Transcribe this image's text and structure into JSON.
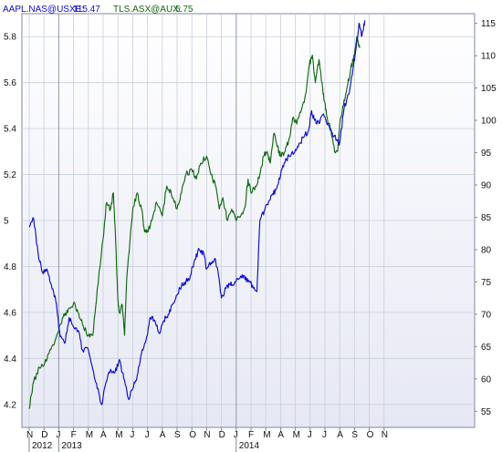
{
  "legend": [
    {
      "name": "AAPL.NAS@USXE:",
      "last": "115.47",
      "color": "#0b0bd8"
    },
    {
      "name": "TLS.ASX@AUX:",
      "last": "5.75",
      "color": "#0e6a0e"
    }
  ],
  "chart_data": {
    "type": "line",
    "grid": true,
    "legend_position": "top-left",
    "left_axis": {
      "series": "TLS.ASX@AUX",
      "ylim": [
        4.1,
        5.9
      ],
      "ticks": [
        "4.2",
        "4.4",
        "4.6",
        "4.8",
        "5",
        "5.2",
        "5.4",
        "5.6",
        "5.8"
      ]
    },
    "right_axis": {
      "series": "AAPL.NAS@USXE",
      "ylim": [
        52.5,
        116.5
      ],
      "ticks": [
        "55",
        "60",
        "65",
        "70",
        "75",
        "80",
        "85",
        "90",
        "95",
        "100",
        "105",
        "110",
        "115"
      ]
    },
    "x_axis": {
      "months": [
        "N",
        "D",
        "J",
        "F",
        "M",
        "A",
        "M",
        "J",
        "J",
        "A",
        "S",
        "O",
        "N",
        "D",
        "J",
        "F",
        "M",
        "A",
        "M",
        "J",
        "J",
        "A",
        "S",
        "O",
        "N"
      ],
      "years": [
        {
          "label": "2012",
          "month_index": 0
        },
        {
          "label": "2013",
          "month_index": 2
        },
        {
          "label": "2014",
          "month_index": 14
        }
      ]
    },
    "series": [
      {
        "name": "TLS.ASX@AUX",
        "axis": "left",
        "color": "#0e6a0e",
        "points": [
          [
            0,
            4.18
          ],
          [
            0.3,
            4.3
          ],
          [
            0.7,
            4.36
          ],
          [
            1.0,
            4.37
          ],
          [
            1.3,
            4.42
          ],
          [
            1.6,
            4.46
          ],
          [
            2.0,
            4.52
          ],
          [
            2.3,
            4.58
          ],
          [
            2.6,
            4.6
          ],
          [
            3.0,
            4.64
          ],
          [
            3.3,
            4.6
          ],
          [
            3.6,
            4.55
          ],
          [
            4.0,
            4.5
          ],
          [
            4.3,
            4.5
          ],
          [
            4.6,
            4.7
          ],
          [
            5.0,
            4.92
          ],
          [
            5.2,
            5.07
          ],
          [
            5.5,
            5.05
          ],
          [
            5.7,
            5.12
          ],
          [
            5.85,
            4.9
          ],
          [
            6.0,
            4.65
          ],
          [
            6.1,
            4.6
          ],
          [
            6.3,
            4.63
          ],
          [
            6.45,
            4.5
          ],
          [
            6.6,
            4.75
          ],
          [
            6.8,
            4.9
          ],
          [
            7.0,
            5.05
          ],
          [
            7.3,
            5.12
          ],
          [
            7.6,
            5.05
          ],
          [
            7.8,
            4.95
          ],
          [
            8.0,
            4.95
          ],
          [
            8.3,
            5.0
          ],
          [
            8.6,
            5.08
          ],
          [
            9.0,
            5.02
          ],
          [
            9.3,
            5.15
          ],
          [
            9.6,
            5.12
          ],
          [
            10.0,
            5.05
          ],
          [
            10.3,
            5.12
          ],
          [
            10.6,
            5.2
          ],
          [
            11.0,
            5.22
          ],
          [
            11.3,
            5.18
          ],
          [
            11.6,
            5.25
          ],
          [
            12.0,
            5.28
          ],
          [
            12.3,
            5.2
          ],
          [
            12.6,
            5.15
          ],
          [
            12.85,
            5.05
          ],
          [
            13.1,
            5.1
          ],
          [
            13.4,
            5.0
          ],
          [
            13.7,
            5.05
          ],
          [
            14.0,
            5.0
          ],
          [
            14.3,
            5.02
          ],
          [
            14.6,
            5.06
          ],
          [
            14.8,
            5.18
          ],
          [
            15.0,
            5.12
          ],
          [
            15.3,
            5.15
          ],
          [
            15.6,
            5.2
          ],
          [
            15.85,
            5.28
          ],
          [
            16.1,
            5.3
          ],
          [
            16.3,
            5.25
          ],
          [
            16.55,
            5.38
          ],
          [
            16.8,
            5.32
          ],
          [
            17.0,
            5.28
          ],
          [
            17.3,
            5.3
          ],
          [
            17.6,
            5.36
          ],
          [
            17.85,
            5.45
          ],
          [
            18.1,
            5.42
          ],
          [
            18.4,
            5.48
          ],
          [
            18.7,
            5.55
          ],
          [
            18.95,
            5.68
          ],
          [
            19.15,
            5.72
          ],
          [
            19.35,
            5.6
          ],
          [
            19.6,
            5.7
          ],
          [
            19.8,
            5.6
          ],
          [
            19.95,
            5.52
          ],
          [
            20.15,
            5.45
          ],
          [
            20.4,
            5.4
          ],
          [
            20.65,
            5.3
          ],
          [
            20.85,
            5.3
          ],
          [
            21.0,
            5.42
          ],
          [
            21.25,
            5.5
          ],
          [
            21.5,
            5.58
          ],
          [
            21.75,
            5.66
          ],
          [
            22.0,
            5.72
          ],
          [
            22.15,
            5.8
          ],
          [
            22.35,
            5.75
          ]
        ]
      },
      {
        "name": "AAPL.NAS@USXE",
        "axis": "right",
        "color": "#0b0bd8",
        "points": [
          [
            0,
            83.5
          ],
          [
            0.3,
            84.8
          ],
          [
            0.6,
            79.5
          ],
          [
            0.9,
            76.5
          ],
          [
            1.2,
            77.0
          ],
          [
            1.5,
            74.5
          ],
          [
            1.8,
            72.0
          ],
          [
            2.1,
            66.5
          ],
          [
            2.4,
            65.5
          ],
          [
            2.7,
            69.5
          ],
          [
            3.0,
            68.0
          ],
          [
            3.3,
            67.5
          ],
          [
            3.6,
            64.5
          ],
          [
            4.0,
            64.5
          ],
          [
            4.3,
            61.5
          ],
          [
            4.6,
            58.5
          ],
          [
            4.9,
            56.0
          ],
          [
            5.2,
            59.5
          ],
          [
            5.5,
            61.5
          ],
          [
            5.8,
            61.0
          ],
          [
            6.1,
            63.0
          ],
          [
            6.4,
            60.0
          ],
          [
            6.7,
            57.0
          ],
          [
            7.0,
            58.5
          ],
          [
            7.3,
            60.5
          ],
          [
            7.6,
            64.0
          ],
          [
            7.9,
            66.0
          ],
          [
            8.2,
            69.5
          ],
          [
            8.5,
            69.0
          ],
          [
            8.8,
            67.0
          ],
          [
            9.1,
            69.0
          ],
          [
            9.4,
            70.0
          ],
          [
            9.7,
            71.5
          ],
          [
            10.0,
            73.0
          ],
          [
            10.3,
            74.5
          ],
          [
            10.6,
            75.0
          ],
          [
            10.9,
            76.0
          ],
          [
            11.2,
            78.5
          ],
          [
            11.5,
            80.0
          ],
          [
            11.8,
            79.5
          ],
          [
            12.0,
            77.0
          ],
          [
            12.3,
            78.0
          ],
          [
            12.6,
            78.5
          ],
          [
            12.8,
            76.0
          ],
          [
            13.0,
            72.5
          ],
          [
            13.3,
            74.0
          ],
          [
            13.6,
            74.5
          ],
          [
            13.9,
            75.0
          ],
          [
            14.2,
            75.5
          ],
          [
            14.5,
            76.0
          ],
          [
            14.8,
            75.0
          ],
          [
            15.1,
            74.5
          ],
          [
            15.4,
            73.5
          ],
          [
            15.6,
            84.5
          ],
          [
            15.9,
            86.0
          ],
          [
            16.2,
            87.5
          ],
          [
            16.5,
            88.5
          ],
          [
            16.8,
            90.0
          ],
          [
            17.1,
            92.5
          ],
          [
            17.4,
            94.0
          ],
          [
            17.7,
            94.5
          ],
          [
            18.0,
            95.5
          ],
          [
            18.3,
            96.5
          ],
          [
            18.6,
            97.5
          ],
          [
            18.9,
            98.5
          ],
          [
            19.1,
            101.5
          ],
          [
            19.3,
            100.0
          ],
          [
            19.6,
            99.5
          ],
          [
            19.9,
            101.0
          ],
          [
            20.2,
            99.5
          ],
          [
            20.5,
            98.0
          ],
          [
            20.8,
            97.0
          ],
          [
            21.0,
            96.5
          ],
          [
            21.3,
            102.0
          ],
          [
            21.6,
            104.0
          ],
          [
            21.9,
            108.0
          ],
          [
            22.1,
            111.0
          ],
          [
            22.3,
            115.0
          ],
          [
            22.5,
            113.0
          ],
          [
            22.7,
            115.47
          ]
        ]
      }
    ]
  }
}
